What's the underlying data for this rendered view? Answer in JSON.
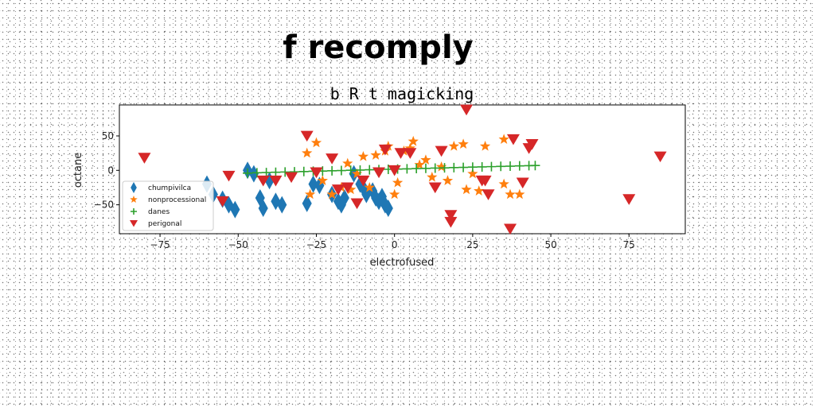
{
  "chart_data": {
    "type": "scatter",
    "suptitle": "f recomply",
    "title": "b R t magicking",
    "xlabel": "electrofused",
    "ylabel": "octane",
    "xlim": [
      -88,
      93
    ],
    "ylim": [
      -92,
      95
    ],
    "xticks": [
      -75,
      -50,
      -25,
      0,
      25,
      50,
      75
    ],
    "yticks": [
      -50,
      0,
      50
    ],
    "legend_position": "lower-left",
    "grid": false,
    "series": [
      {
        "name": "chumpivilca",
        "marker": "diamond",
        "color": "#1f77b4",
        "points": [
          [
            -60,
            -20
          ],
          [
            -58,
            -35
          ],
          [
            -55,
            -42
          ],
          [
            -53,
            -50
          ],
          [
            -51,
            -57
          ],
          [
            -47,
            0
          ],
          [
            -45,
            -5
          ],
          [
            -43,
            -40
          ],
          [
            -42,
            -55
          ],
          [
            -40,
            -15
          ],
          [
            -38,
            -45
          ],
          [
            -36,
            -50
          ],
          [
            -28,
            -48
          ],
          [
            -26,
            -20
          ],
          [
            -24,
            -22
          ],
          [
            -20,
            -35
          ],
          [
            -18,
            -45
          ],
          [
            -17,
            -50
          ],
          [
            -16,
            -40
          ],
          [
            -13,
            -5
          ],
          [
            -11,
            -20
          ],
          [
            -10,
            -25
          ],
          [
            -9,
            -35
          ],
          [
            -7,
            -30
          ],
          [
            -6,
            -40
          ],
          [
            -5,
            -45
          ],
          [
            -4,
            -38
          ],
          [
            -3,
            -50
          ],
          [
            -2,
            -55
          ]
        ]
      },
      {
        "name": "nonprocessional",
        "marker": "star",
        "color": "#ff7f0e",
        "points": [
          [
            -28,
            25
          ],
          [
            -25,
            40
          ],
          [
            -27,
            -35
          ],
          [
            -23,
            -15
          ],
          [
            -20,
            -35
          ],
          [
            -17,
            -25
          ],
          [
            -14,
            -28
          ],
          [
            -15,
            10
          ],
          [
            -12,
            -5
          ],
          [
            -10,
            20
          ],
          [
            -8,
            -25
          ],
          [
            -6,
            22
          ],
          [
            -3,
            28
          ],
          [
            -2,
            35
          ],
          [
            0,
            -35
          ],
          [
            1,
            -18
          ],
          [
            3,
            28
          ],
          [
            5,
            32
          ],
          [
            6,
            42
          ],
          [
            8,
            8
          ],
          [
            10,
            15
          ],
          [
            12,
            -10
          ],
          [
            15,
            5
          ],
          [
            17,
            -15
          ],
          [
            19,
            35
          ],
          [
            22,
            38
          ],
          [
            23,
            -28
          ],
          [
            25,
            -5
          ],
          [
            27,
            -30
          ],
          [
            29,
            35
          ],
          [
            35,
            -20
          ],
          [
            37,
            -35
          ],
          [
            40,
            -35
          ],
          [
            35,
            45
          ]
        ]
      },
      {
        "name": "danes",
        "marker": "plus",
        "color": "#2ca02c",
        "points": [
          [
            -47,
            -4
          ],
          [
            -44,
            -3.5
          ],
          [
            -41,
            -3.2
          ],
          [
            -38,
            -2.8
          ],
          [
            -35,
            -2.4
          ],
          [
            -32,
            -2.1
          ],
          [
            -29,
            -1.7
          ],
          [
            -26,
            -1.3
          ],
          [
            -23,
            -1
          ],
          [
            -20,
            -0.6
          ],
          [
            -17,
            -0.3
          ],
          [
            -14,
            0.1
          ],
          [
            -11,
            0.4
          ],
          [
            -8,
            0.8
          ],
          [
            -5,
            1.1
          ],
          [
            -2,
            1.5
          ],
          [
            1,
            1.9
          ],
          [
            4,
            2.2
          ],
          [
            7,
            2.6
          ],
          [
            10,
            2.9
          ],
          [
            13,
            3.3
          ],
          [
            16,
            3.6
          ],
          [
            19,
            4
          ],
          [
            22,
            4.3
          ],
          [
            25,
            4.7
          ],
          [
            28,
            5
          ],
          [
            31,
            5.4
          ],
          [
            34,
            5.8
          ],
          [
            37,
            6.1
          ],
          [
            40,
            6.5
          ],
          [
            43,
            6.8
          ],
          [
            45,
            7
          ]
        ]
      },
      {
        "name": "perigonal",
        "marker": "triangle-down",
        "color": "#d62728",
        "points": [
          [
            -80,
            18
          ],
          [
            -55,
            -45
          ],
          [
            -53,
            -8
          ],
          [
            -42,
            -15
          ],
          [
            -38,
            -15
          ],
          [
            -33,
            -10
          ],
          [
            -28,
            50
          ],
          [
            -25,
            -3
          ],
          [
            -20,
            17
          ],
          [
            -18,
            -28
          ],
          [
            -15,
            -25
          ],
          [
            -12,
            -48
          ],
          [
            -10,
            -15
          ],
          [
            -5,
            -3
          ],
          [
            -3,
            30
          ],
          [
            0,
            0
          ],
          [
            2,
            25
          ],
          [
            5,
            25
          ],
          [
            13,
            -25
          ],
          [
            15,
            28
          ],
          [
            18,
            -65
          ],
          [
            18,
            -75
          ],
          [
            23,
            88
          ],
          [
            28,
            -15
          ],
          [
            29,
            -15
          ],
          [
            30,
            -35
          ],
          [
            37,
            -85
          ],
          [
            38,
            45
          ],
          [
            41,
            -18
          ],
          [
            43,
            32
          ],
          [
            44,
            38
          ],
          [
            75,
            -42
          ],
          [
            85,
            20
          ]
        ]
      }
    ]
  }
}
